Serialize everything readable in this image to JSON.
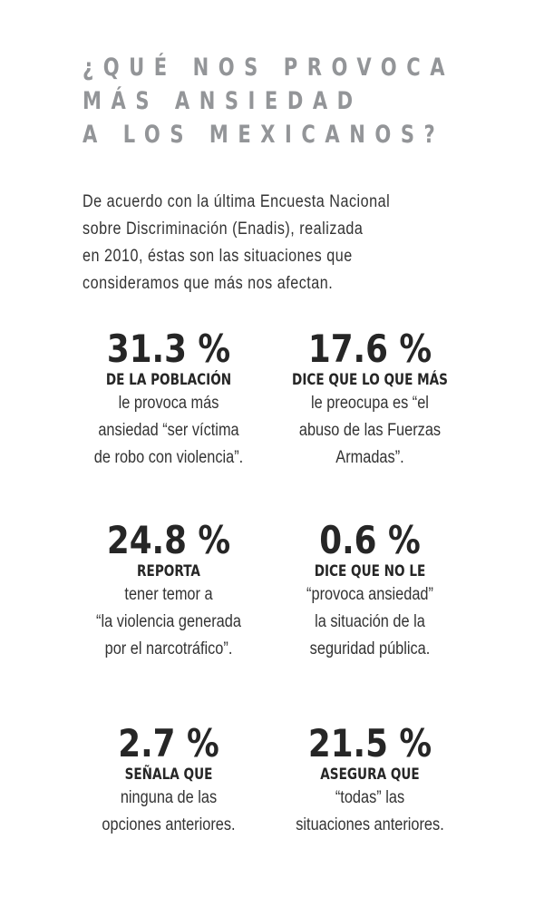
{
  "title": [
    "¿QUÉ NOS PROVOCA",
    "MÁS ANSIEDAD",
    "A LOS MEXICANOS?"
  ],
  "intro": [
    "De acuerdo con la última Encuesta Nacional",
    "sobre Discriminación (Enadis), realizada",
    "en 2010, éstas son las situaciones que",
    "consideramos que más nos afectan."
  ],
  "stats": [
    {
      "value": "31.3 %",
      "label": "DE LA POBLACIÓN",
      "text": [
        "le provoca más",
        "ansiedad “ser víctima",
        "de robo con violencia”."
      ]
    },
    {
      "value": "17.6 %",
      "label": "DICE QUE LO QUE MÁS",
      "text": [
        "le preocupa es “el",
        "abuso de las Fuerzas",
        "Armadas”."
      ]
    },
    {
      "value": "24.8 %",
      "label": "REPORTA",
      "text": [
        "tener temor a",
        "“la violencia generada",
        "por el narcotráfico”."
      ]
    },
    {
      "value": "0.6 %",
      "label": "DICE QUE NO LE",
      "text": [
        "“provoca ansiedad”",
        "la situación de la",
        "seguridad pública."
      ]
    },
    {
      "value": "2.7 %",
      "label": "SEÑALA QUE",
      "text": [
        "ninguna de las",
        "opciones anteriores."
      ]
    },
    {
      "value": "21.5 %",
      "label": "ASEGURA QUE",
      "text": [
        "“todas” las",
        "situaciones anteriores."
      ]
    }
  ]
}
